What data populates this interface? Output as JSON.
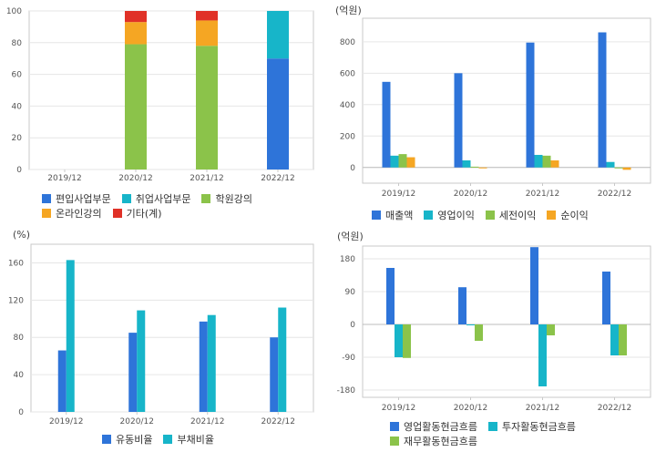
{
  "chart_data": [
    {
      "type": "bar",
      "stacked": true,
      "unit": "",
      "categories": [
        "2019/12",
        "2020/12",
        "2021/12",
        "2022/12"
      ],
      "ylim": [
        0,
        100
      ],
      "yticks": [
        0,
        20,
        40,
        60,
        80,
        100
      ],
      "series": [
        {
          "name": "편입사업부문",
          "color": "#2e74d9",
          "values": [
            0,
            0,
            0,
            70
          ]
        },
        {
          "name": "취업사업부문",
          "color": "#17b5c9",
          "values": [
            0,
            0,
            0,
            30
          ]
        },
        {
          "name": "학원강의",
          "color": "#8bc34a",
          "values": [
            0,
            79,
            78,
            0
          ]
        },
        {
          "name": "온라인강의",
          "color": "#f5a623",
          "values": [
            0,
            14,
            16,
            0
          ]
        },
        {
          "name": "기타(계)",
          "color": "#e03127",
          "values": [
            0,
            7,
            6,
            0
          ]
        }
      ]
    },
    {
      "type": "bar",
      "unit": "(억원)",
      "categories": [
        "2019/12",
        "2020/12",
        "2021/12",
        "2022/12"
      ],
      "ylim": [
        -100,
        950
      ],
      "yticks": [
        0,
        200,
        400,
        600,
        800
      ],
      "series": [
        {
          "name": "매출액",
          "color": "#2e74d9",
          "values": [
            545,
            600,
            795,
            860
          ]
        },
        {
          "name": "영업이익",
          "color": "#17b5c9",
          "values": [
            75,
            45,
            80,
            35
          ]
        },
        {
          "name": "세전이익",
          "color": "#8bc34a",
          "values": [
            85,
            5,
            75,
            0
          ]
        },
        {
          "name": "순이익",
          "color": "#f5a623",
          "values": [
            65,
            -5,
            45,
            -15
          ]
        }
      ]
    },
    {
      "type": "bar",
      "unit": "(%)",
      "categories": [
        "2019/12",
        "2020/12",
        "2021/12",
        "2022/12"
      ],
      "ylim": [
        0,
        180
      ],
      "yticks": [
        0,
        40,
        80,
        120,
        160
      ],
      "series": [
        {
          "name": "유동비율",
          "color": "#2e74d9",
          "values": [
            66,
            85,
            97,
            80
          ]
        },
        {
          "name": "부채비율",
          "color": "#17b5c9",
          "values": [
            163,
            109,
            104,
            112
          ]
        }
      ]
    },
    {
      "type": "bar",
      "unit": "(억원)",
      "categories": [
        "2019/12",
        "2020/12",
        "2021/12",
        "2022/12"
      ],
      "ylim": [
        -200,
        215
      ],
      "yticks": [
        -180,
        -90,
        0,
        90,
        180
      ],
      "series": [
        {
          "name": "영업활동현금흐름",
          "color": "#2e74d9",
          "values": [
            155,
            102,
            212,
            145
          ]
        },
        {
          "name": "투자활동현금흐름",
          "color": "#17b5c9",
          "values": [
            -90,
            -2,
            -170,
            -85
          ]
        },
        {
          "name": "재무활동현금흐름",
          "color": "#8bc34a",
          "values": [
            -92,
            -45,
            -30,
            -85
          ]
        }
      ]
    }
  ]
}
